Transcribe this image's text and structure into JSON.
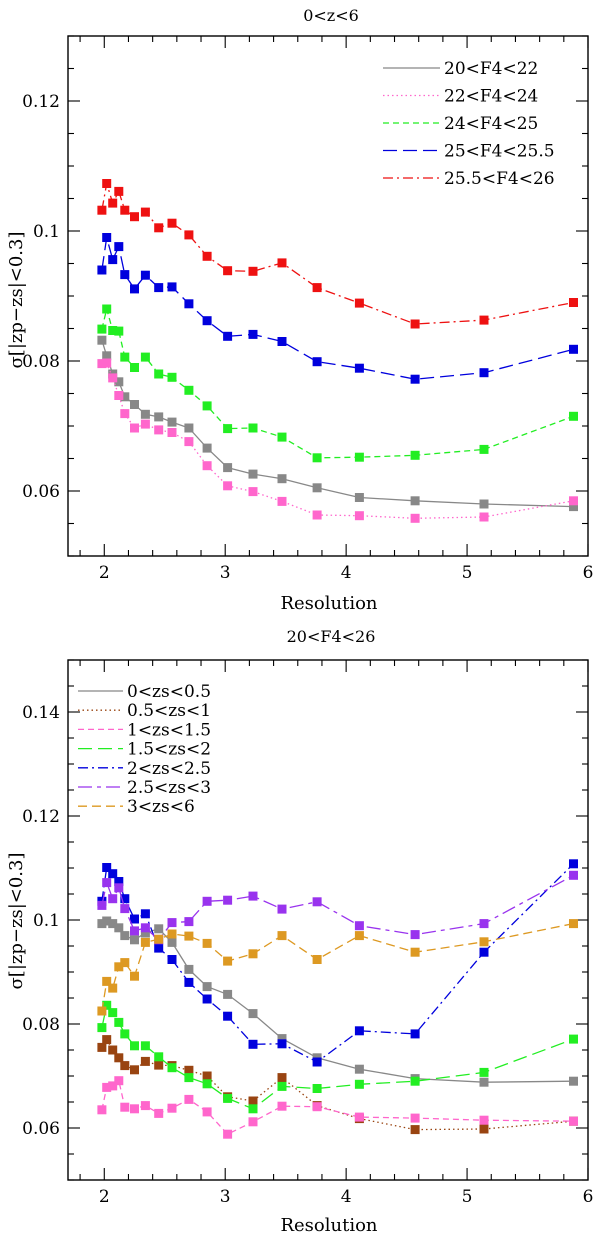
{
  "chart_data": [
    {
      "type": "line",
      "title": "0<z<6",
      "xlabel": "Resolution",
      "ylabel": "σ[|zp−zs|<0.3]",
      "xlim": [
        1.7,
        6.0
      ],
      "ylim": [
        0.05,
        0.13
      ],
      "xticks": [
        2,
        3,
        4,
        5,
        6
      ],
      "yticks": [
        0.06,
        0.08,
        0.1,
        0.12
      ],
      "x": [
        1.98,
        2.02,
        2.07,
        2.12,
        2.17,
        2.25,
        2.34,
        2.45,
        2.56,
        2.7,
        2.85,
        3.02,
        3.23,
        3.47,
        3.76,
        4.11,
        4.57,
        5.14,
        5.88
      ],
      "series": [
        {
          "name": "20<F4<22",
          "color": "#888888",
          "dash": "solid",
          "values": [
            0.0832,
            0.0808,
            0.078,
            0.0768,
            0.0745,
            0.0733,
            0.0718,
            0.0714,
            0.0706,
            0.0697,
            0.0666,
            0.0636,
            0.0626,
            0.0619,
            0.0605,
            0.059,
            0.0585,
            0.058,
            0.0576
          ]
        },
        {
          "name": "22<F4<24",
          "color": "#ff66cc",
          "dash": "dotted",
          "values": [
            0.0796,
            0.0797,
            0.0774,
            0.0747,
            0.0719,
            0.0697,
            0.0703,
            0.0694,
            0.069,
            0.0676,
            0.0639,
            0.0608,
            0.0599,
            0.0584,
            0.0563,
            0.0562,
            0.0558,
            0.056,
            0.0585
          ]
        },
        {
          "name": "24<F4<25",
          "color": "#22ee22",
          "dash": "short-dash",
          "values": [
            0.0849,
            0.088,
            0.0847,
            0.0846,
            0.0806,
            0.079,
            0.0806,
            0.078,
            0.0775,
            0.0755,
            0.0731,
            0.0696,
            0.0697,
            0.0683,
            0.0651,
            0.0652,
            0.0655,
            0.0664,
            0.0715
          ]
        },
        {
          "name": "25<F4<25.5",
          "color": "#0000dd",
          "dash": "long-dash",
          "values": [
            0.094,
            0.099,
            0.0956,
            0.0976,
            0.0933,
            0.0911,
            0.0932,
            0.0913,
            0.0914,
            0.0888,
            0.0862,
            0.0838,
            0.0841,
            0.083,
            0.0799,
            0.0789,
            0.0772,
            0.0782,
            0.0818
          ]
        },
        {
          "name": "25.5<F4<26",
          "color": "#ee1111",
          "dash": "dash-dot",
          "values": [
            0.1032,
            0.1073,
            0.1043,
            0.1061,
            0.1032,
            0.1022,
            0.1029,
            0.1005,
            0.1012,
            0.0994,
            0.0961,
            0.0939,
            0.0938,
            0.0951,
            0.0913,
            0.0889,
            0.0857,
            0.0863,
            0.089
          ]
        }
      ]
    },
    {
      "type": "line",
      "title": "20<F4<26",
      "xlabel": "Resolution",
      "ylabel": "σ[|zp−zs|<0.3]",
      "xlim": [
        1.7,
        6.0
      ],
      "ylim": [
        0.05,
        0.15
      ],
      "xticks": [
        2,
        3,
        4,
        5,
        6
      ],
      "yticks": [
        0.06,
        0.08,
        0.1,
        0.12,
        0.14
      ],
      "x": [
        1.98,
        2.02,
        2.07,
        2.12,
        2.17,
        2.25,
        2.34,
        2.45,
        2.56,
        2.7,
        2.85,
        3.02,
        3.23,
        3.47,
        3.76,
        4.11,
        4.57,
        5.14,
        5.88
      ],
      "series": [
        {
          "name": "0<zs<0.5",
          "color": "#888888",
          "dash": "solid",
          "values": [
            0.0993,
            0.0998,
            0.0993,
            0.0985,
            0.097,
            0.0962,
            0.0975,
            0.0983,
            0.0957,
            0.0905,
            0.0872,
            0.0857,
            0.082,
            0.0772,
            0.0735,
            0.0713,
            0.0695,
            0.0688,
            0.069
          ]
        },
        {
          "name": "0.5<zs<1",
          "color": "#994411",
          "dash": "dotted",
          "values": [
            0.0755,
            0.077,
            0.075,
            0.0735,
            0.072,
            0.0712,
            0.0728,
            0.0721,
            0.072,
            0.0711,
            0.07,
            0.066,
            0.0652,
            0.0697,
            0.0643,
            0.0618,
            0.0597,
            0.0598,
            0.0613
          ]
        },
        {
          "name": "1<zs<1.5",
          "color": "#ff66cc",
          "dash": "short-dash",
          "values": [
            0.0635,
            0.0678,
            0.0681,
            0.0691,
            0.064,
            0.0637,
            0.0643,
            0.0628,
            0.0638,
            0.0655,
            0.0631,
            0.0588,
            0.0612,
            0.0642,
            0.0641,
            0.0621,
            0.0619,
            0.0615,
            0.0613
          ]
        },
        {
          "name": "1.5<zs<2",
          "color": "#22ee22",
          "dash": "long-dash",
          "values": [
            0.0793,
            0.0836,
            0.0822,
            0.0803,
            0.0781,
            0.0758,
            0.0758,
            0.0737,
            0.0716,
            0.0697,
            0.0685,
            0.0657,
            0.0637,
            0.068,
            0.0676,
            0.0684,
            0.069,
            0.0707,
            0.0771
          ]
        },
        {
          "name": "2<zs<2.5",
          "color": "#0000dd",
          "dash": "dash-dot",
          "values": [
            0.1036,
            0.1101,
            0.1089,
            0.1074,
            0.1041,
            0.1002,
            0.1012,
            0.0946,
            0.0924,
            0.088,
            0.0848,
            0.0815,
            0.0761,
            0.0762,
            0.0727,
            0.0787,
            0.0781,
            0.0938,
            0.1108
          ]
        },
        {
          "name": "2.5<zs<3",
          "color": "#9933ee",
          "dash": "long-short",
          "values": [
            0.1028,
            0.1072,
            0.1041,
            0.1062,
            0.1022,
            0.0979,
            0.0985,
            0.0962,
            0.0995,
            0.0997,
            0.1036,
            0.1038,
            0.1046,
            0.1021,
            0.1035,
            0.0989,
            0.0972,
            0.0993,
            0.1086
          ]
        },
        {
          "name": "3<zs<6",
          "color": "#dd9922",
          "dash": "medium-dash",
          "values": [
            0.0825,
            0.0882,
            0.0869,
            0.091,
            0.0918,
            0.0892,
            0.0957,
            0.0963,
            0.0973,
            0.0969,
            0.0955,
            0.0921,
            0.0935,
            0.097,
            0.0924,
            0.097,
            0.0938,
            0.0958,
            0.0993
          ]
        }
      ]
    }
  ]
}
